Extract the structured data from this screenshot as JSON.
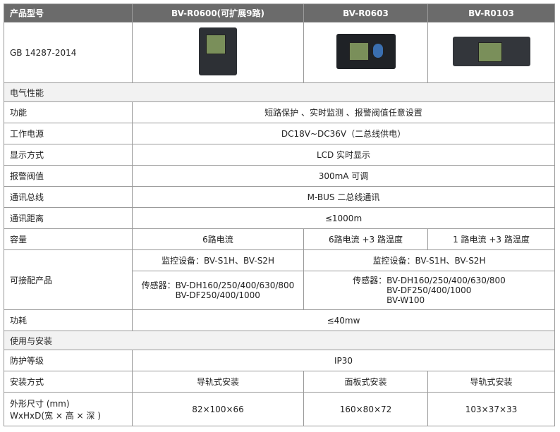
{
  "header": {
    "col0": "产品型号",
    "models": [
      "BV-R0600(可扩展9路)",
      "BV-R0603",
      "BV-R0103"
    ]
  },
  "standard": "GB 14287-2014",
  "section_electrical": "电气性能",
  "rows": [
    {
      "label": "功能",
      "value": "短路保护 、实时监测 、报警阀值任意设置"
    },
    {
      "label": "工作电源",
      "value": "DC18V~DC36V（二总线供电）"
    },
    {
      "label": "显示方式",
      "value": "LCD 实时显示"
    },
    {
      "label": "报警阀值",
      "value": "300mA 可调"
    },
    {
      "label": "通讯总线",
      "value": "M-BUS 二总线通讯"
    },
    {
      "label": "通讯距离",
      "value": "≤1000m"
    }
  ],
  "capacity": {
    "label": "容量",
    "values": [
      "6路电流",
      "6路电流 +3 路温度",
      "1 路电流 +3 路温度"
    ]
  },
  "compatible": {
    "label": "可接配产品",
    "monitor_a": "监控设备：BV-S1H、BV-S2H",
    "monitor_b": "监控设备：BV-S1H、BV-S2H",
    "sensor_a": [
      "传感器：BV-DH160/250/400/630/800",
      "BV-DF250/400/1000"
    ],
    "sensor_b": [
      "传感器：BV-DH160/250/400/630/800",
      "BV-DF250/400/1000",
      "BV-W100"
    ]
  },
  "power": {
    "label": "功耗",
    "value": "≤40mw"
  },
  "section_install": "使用与安装",
  "protection": {
    "label": "防护等级",
    "value": "IP30"
  },
  "mounting": {
    "label": "安装方式",
    "values": [
      "导轨式安装",
      "面板式安装",
      "导轨式安装"
    ]
  },
  "dimensions": {
    "label1": "外形尺寸 (mm)",
    "label2": "WxHxD(宽 × 高 × 深 )",
    "values": [
      "82×100×66",
      "160×80×72",
      "103×37×33"
    ]
  }
}
